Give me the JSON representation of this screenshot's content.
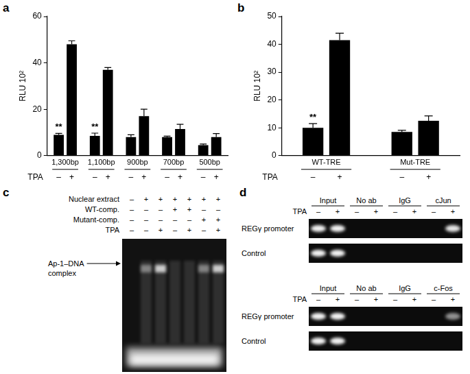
{
  "chart_data": [
    {
      "panel": "a",
      "type": "bar",
      "categories": [
        "1,300bp",
        "1,100bp",
        "900bp",
        "700bp",
        "500bp"
      ],
      "series": [
        {
          "name": "–",
          "color": "#000000",
          "values": [
            9,
            8.5,
            8,
            8,
            4.5
          ],
          "errors": [
            0.6,
            1.2,
            1,
            0.4,
            0.5
          ]
        },
        {
          "name": "+",
          "color": "#000000",
          "values": [
            48,
            37,
            17,
            11.5,
            8
          ],
          "errors": [
            1.5,
            1,
            3,
            2,
            1.5
          ]
        }
      ],
      "row_label": "TPA",
      "y_label": "RLU 10²",
      "ylim": [
        0,
        60
      ],
      "yticks": [
        0,
        20,
        40,
        60
      ],
      "grid": false,
      "annotations": [
        {
          "category": "1,300bp",
          "series": "–",
          "text": "**"
        },
        {
          "category": "1,100bp",
          "series": "–",
          "text": "**"
        }
      ]
    },
    {
      "panel": "b",
      "type": "bar",
      "categories": [
        "WT-TRE",
        "Mut-TRE"
      ],
      "series": [
        {
          "name": "–",
          "color": "#000000",
          "values": [
            10,
            8.5
          ],
          "errors": [
            1.5,
            0.6
          ]
        },
        {
          "name": "+",
          "color": "#000000",
          "values": [
            41.5,
            12.5
          ],
          "errors": [
            2.5,
            1.8
          ]
        }
      ],
      "row_label": "TPA",
      "y_label": "RLU 10²",
      "ylim": [
        0,
        50
      ],
      "yticks": [
        0,
        10,
        20,
        30,
        40,
        50
      ],
      "grid": false,
      "annotations": [
        {
          "category": "WT-TRE",
          "series": "–",
          "text": "**"
        }
      ]
    }
  ],
  "panel_c": {
    "panel": "c",
    "row_labels": [
      "Nuclear extract",
      "WT-comp.",
      "Mutant-comp.",
      "TPA"
    ],
    "signs": [
      [
        "–",
        "+",
        "+",
        "+",
        "+",
        "+",
        "+"
      ],
      [
        "–",
        "–",
        "–",
        "+",
        "+",
        "–",
        "–"
      ],
      [
        "–",
        "–",
        "–",
        "–",
        "–",
        "+",
        "+"
      ],
      [
        "–",
        "–",
        "+",
        "–",
        "+",
        "–",
        "+"
      ]
    ],
    "band_label": "Ap-1–DNA complex"
  },
  "panel_d": {
    "panel": "d",
    "blots": [
      {
        "groups": [
          "Input",
          "No ab",
          "IgG",
          "cJun"
        ],
        "row_label": "TPA",
        "signs": [
          "–",
          "+"
        ],
        "bands": [
          "REGγ promoter",
          "Control"
        ]
      },
      {
        "groups": [
          "Input",
          "No ab",
          "IgG",
          "c-Fos"
        ],
        "row_label": "TPA",
        "signs": [
          "–",
          "+"
        ],
        "bands": [
          "REGγ promoter",
          "Control"
        ]
      }
    ]
  }
}
